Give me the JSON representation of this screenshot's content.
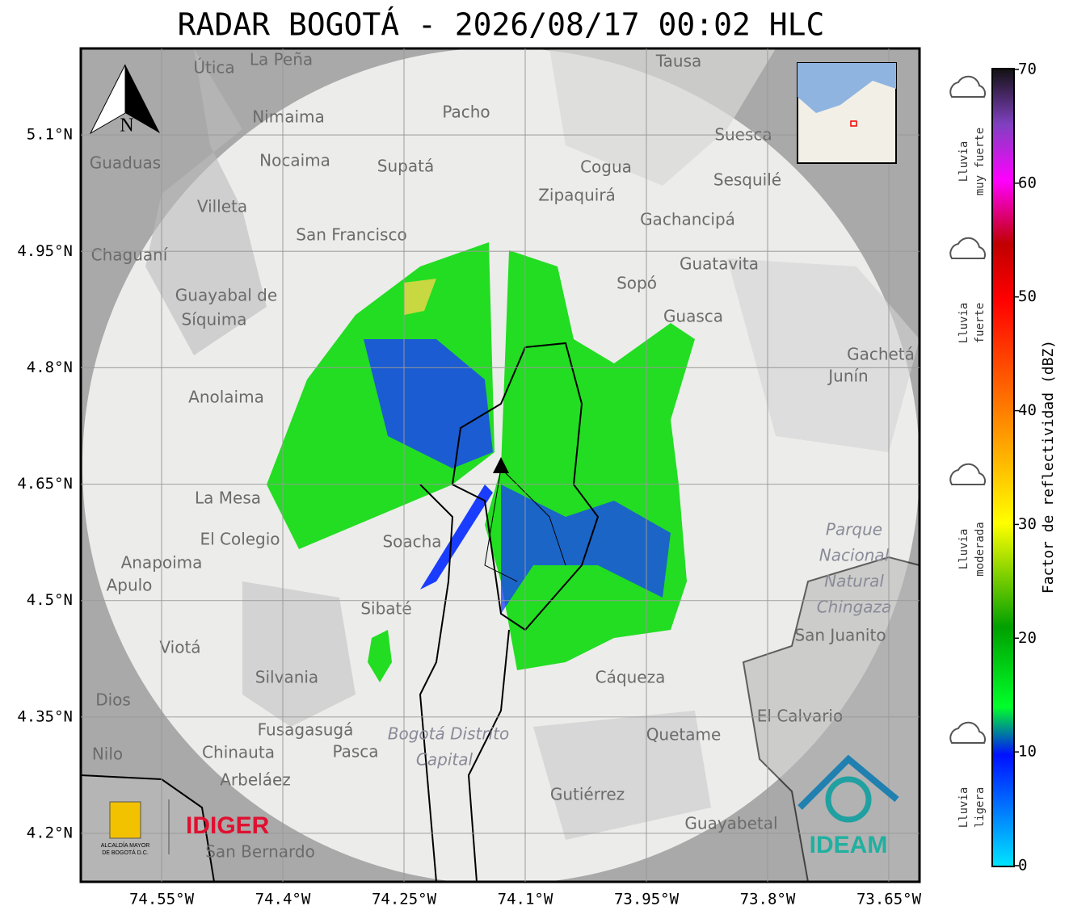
{
  "title": "RADAR BOGOTÁ - 2026/08/17 00:02 HLC",
  "map": {
    "lon_range": [
      -74.65,
      -73.612
    ],
    "lat_range": [
      4.1375,
      5.2115
    ],
    "lon_ticks": [
      {
        "value": -74.55,
        "label": "74.55°W"
      },
      {
        "value": -74.4,
        "label": "74.4°W"
      },
      {
        "value": -74.25,
        "label": "74.25°W"
      },
      {
        "value": -74.1,
        "label": "74.1°W"
      },
      {
        "value": -73.95,
        "label": "73.95°W"
      },
      {
        "value": -73.8,
        "label": "73.8°W"
      },
      {
        "value": -73.65,
        "label": "73.65°W"
      }
    ],
    "lat_ticks": [
      {
        "value": 5.1,
        "label": "5.1°N"
      },
      {
        "value": 4.95,
        "label": "4.95°N"
      },
      {
        "value": 4.8,
        "label": "4.8°N"
      },
      {
        "value": 4.65,
        "label": "4.65°N"
      },
      {
        "value": 4.5,
        "label": "4.5°N"
      },
      {
        "value": 4.35,
        "label": "4.35°N"
      },
      {
        "value": 4.2,
        "label": "4.2°N"
      }
    ],
    "places": [
      "La Peña",
      "Útica",
      "Tausa",
      "Pacho",
      "Nimaima",
      "Guaduas",
      "Nocaima",
      "Supatá",
      "Suesca",
      "Cogua",
      "Sesquilé",
      "Zipaquirá",
      "Villeta",
      "Gachancipá",
      "San Francisco",
      "Chaguaní",
      "Guatavita",
      "Guayabal de",
      "Síquima",
      "Sopó",
      "Guasca",
      "Gachetá",
      "Junín",
      "Anolaima",
      "La Mesa",
      "El Colegio",
      "Soacha",
      "Anapoima",
      "Apulo",
      "Sibaté",
      "San Juanito",
      "Silvania",
      "Cáqueza",
      "Fusagasugá",
      "Quetame",
      "El Calvario",
      "Chinauta",
      "Pasca",
      "Nilo",
      "Arbeláez",
      "Gutiérrez",
      "Guayabetal",
      "San Bernardo",
      "Dios",
      "Viotá"
    ],
    "areas": [
      "Parque",
      "Nacional",
      "Natural",
      "Chingaza",
      "Bogotá Distrito",
      "Capital"
    ],
    "north": "N"
  },
  "colorbar": {
    "label": "Factor de reflectividad (dBZ)",
    "range": [
      0,
      70
    ],
    "ticks": [
      0,
      10,
      20,
      30,
      40,
      50,
      60,
      70
    ]
  },
  "rain_levels": [
    [
      "Lluvia",
      "muy fuerte"
    ],
    [
      "Lluvia",
      "fuerte"
    ],
    [
      "Lluvia",
      "moderada"
    ],
    [
      "Lluvia",
      "ligera"
    ]
  ],
  "logos": {
    "alcaldia": [
      "ALCALDÍA MAYOR",
      "DE BOGOTÁ D.C."
    ],
    "idiger": "IDIGER",
    "ideam": "IDEAM"
  }
}
